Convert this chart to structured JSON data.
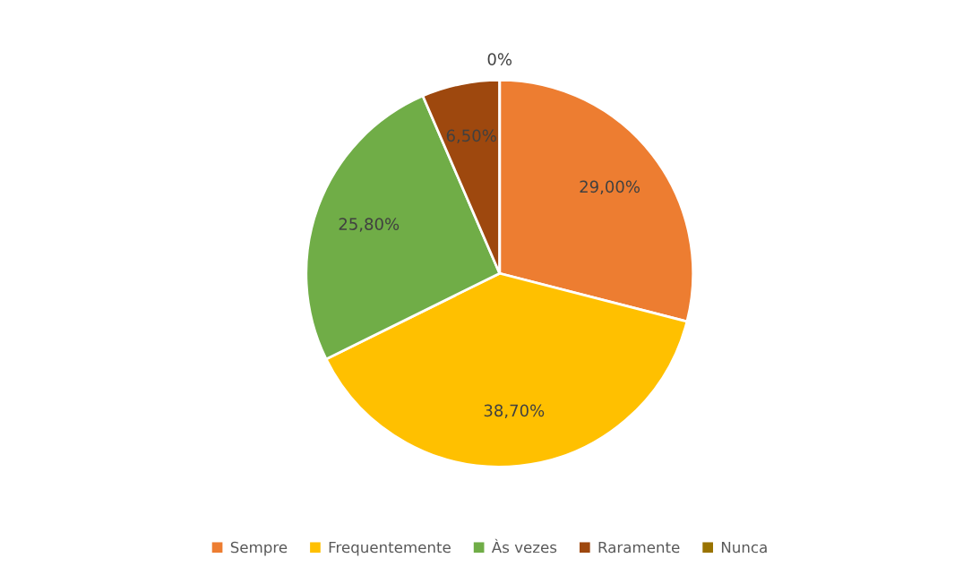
{
  "chart_data": {
    "type": "pie",
    "categories": [
      "Sempre",
      "Frequentemente",
      "Às vezes",
      "Raramente",
      "Nunca"
    ],
    "values": [
      29.0,
      38.7,
      25.8,
      6.5,
      0
    ],
    "value_labels": [
      "29,00%",
      "38,70%",
      "25,80%",
      "6,50%",
      "0%"
    ],
    "colors": [
      "#ed7d31",
      "#ffc000",
      "#70ad47",
      "#9e480e",
      "#997300"
    ],
    "legend": "bottom"
  }
}
